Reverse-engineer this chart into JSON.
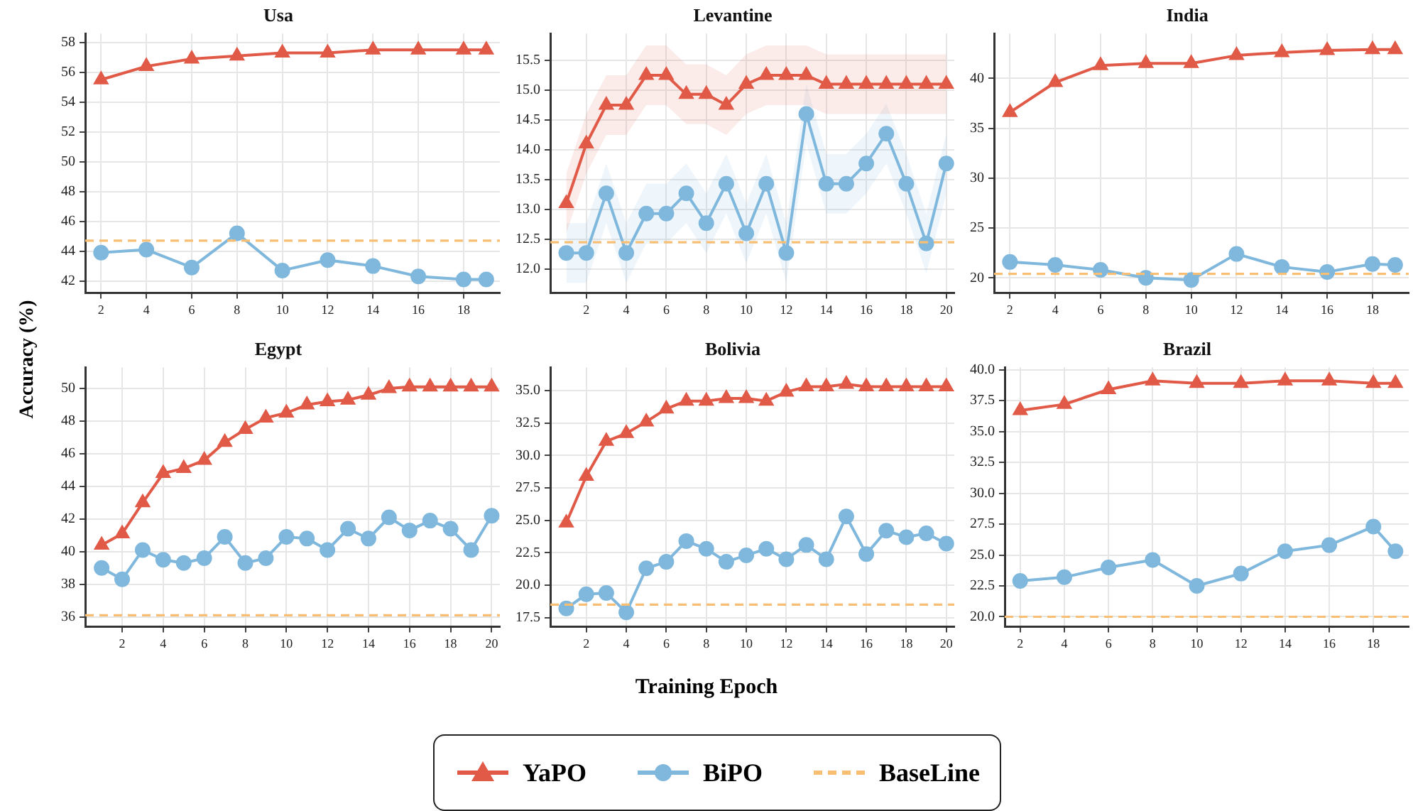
{
  "chart_data": [
    {
      "type": "line",
      "title": "Usa",
      "ylabel": "Accuracy (%)",
      "legend": "bottom",
      "grid": true,
      "x": [
        2,
        4,
        6,
        8,
        10,
        12,
        14,
        16,
        18,
        19
      ],
      "xlim": [
        1.3,
        19.6
      ],
      "xticks": [
        2,
        4,
        6,
        8,
        10,
        12,
        14,
        16,
        18
      ],
      "ylim": [
        41.2,
        58.6
      ],
      "yticks": [
        42,
        44,
        46,
        48,
        50,
        52,
        54,
        56,
        58
      ],
      "series": [
        {
          "name": "YaPO",
          "color": "#e05a47",
          "marker": "triangle",
          "values": [
            55.5,
            56.4,
            56.9,
            57.1,
            57.3,
            57.3,
            57.5,
            57.5,
            57.5,
            57.5
          ]
        },
        {
          "name": "BiPO",
          "color": "#7fb8dc",
          "marker": "circle",
          "values": [
            43.9,
            44.1,
            42.9,
            45.2,
            42.7,
            43.4,
            43.0,
            42.3,
            42.1,
            42.1
          ]
        }
      ],
      "ref_lines": [
        {
          "axis": "y",
          "value": 44.7,
          "label": "BaseLine",
          "color": "#f8bf74",
          "line_style": "dashed"
        }
      ]
    },
    {
      "type": "line",
      "title": "Levantine",
      "grid": true,
      "x": [
        1,
        2,
        3,
        4,
        5,
        6,
        7,
        8,
        9,
        10,
        11,
        12,
        13,
        14,
        15,
        16,
        17,
        18,
        19,
        20
      ],
      "xlim": [
        0.2,
        20.4
      ],
      "xticks": [
        2,
        4,
        6,
        8,
        10,
        12,
        14,
        16,
        18,
        20
      ],
      "ylim": [
        11.6,
        15.95
      ],
      "yticks": [
        {
          "value": 12,
          "label": "12.0"
        },
        12.5,
        {
          "value": 13,
          "label": "13.0"
        },
        13.5,
        {
          "value": 14,
          "label": "14.0"
        },
        14.5,
        {
          "value": 15,
          "label": "15.0"
        },
        15.5
      ],
      "series": [
        {
          "name": "YaPO",
          "color": "#e05a47",
          "marker": "triangle",
          "values": [
            13.1,
            14.1,
            14.75,
            14.75,
            15.25,
            15.25,
            14.93,
            14.93,
            14.75,
            15.1,
            15.25,
            15.25,
            15.25,
            15.1,
            15.1,
            15.1,
            15.1,
            15.1,
            15.1,
            15.1
          ],
          "lower": [
            12.6,
            13.6,
            14.25,
            14.25,
            14.75,
            14.75,
            14.43,
            14.43,
            14.25,
            14.6,
            14.75,
            14.75,
            14.75,
            14.6,
            14.6,
            14.6,
            14.6,
            14.6,
            14.6,
            14.6
          ],
          "upper": [
            13.6,
            14.6,
            15.25,
            15.25,
            15.75,
            15.75,
            15.43,
            15.43,
            15.25,
            15.6,
            15.75,
            15.75,
            15.75,
            15.6,
            15.6,
            15.6,
            15.6,
            15.6,
            15.6,
            15.6
          ]
        },
        {
          "name": "BiPO",
          "color": "#7fb8dc",
          "marker": "circle",
          "values": [
            12.27,
            12.27,
            13.27,
            12.27,
            12.93,
            12.93,
            13.27,
            12.77,
            13.43,
            12.6,
            13.43,
            12.27,
            14.6,
            13.43,
            13.43,
            13.77,
            14.27,
            13.43,
            12.43,
            13.77
          ],
          "lower": [
            11.77,
            11.77,
            12.77,
            11.77,
            12.43,
            12.43,
            12.77,
            12.27,
            12.93,
            12.1,
            12.93,
            11.77,
            14.1,
            12.93,
            12.93,
            13.27,
            13.77,
            12.93,
            11.93,
            13.27
          ],
          "upper": [
            12.77,
            12.77,
            13.77,
            12.77,
            13.43,
            13.43,
            13.77,
            13.27,
            13.93,
            13.1,
            13.93,
            12.77,
            15.1,
            13.93,
            13.93,
            14.27,
            14.77,
            13.93,
            12.93,
            14.27
          ]
        }
      ],
      "ref_lines": [
        {
          "axis": "y",
          "value": 12.45,
          "color": "#f8bf74",
          "line_style": "dashed"
        }
      ]
    },
    {
      "type": "line",
      "title": "India",
      "grid": true,
      "x": [
        2,
        4,
        6,
        8,
        10,
        12,
        14,
        16,
        18,
        19
      ],
      "xlim": [
        1.3,
        19.6
      ],
      "xticks": [
        2,
        4,
        6,
        8,
        10,
        12,
        14,
        16,
        18
      ],
      "ylim": [
        18.5,
        44.5
      ],
      "yticks": [
        20,
        25,
        30,
        35,
        40
      ],
      "series": [
        {
          "name": "YaPO",
          "color": "#e05a47",
          "marker": "triangle",
          "values": [
            36.6,
            39.6,
            41.3,
            41.5,
            41.5,
            42.3,
            42.6,
            42.8,
            42.9,
            42.9
          ]
        },
        {
          "name": "BiPO",
          "color": "#7fb8dc",
          "marker": "circle",
          "values": [
            21.6,
            21.3,
            20.8,
            20.0,
            19.8,
            22.4,
            21.1,
            20.6,
            21.4,
            21.3
          ]
        }
      ],
      "ref_lines": [
        {
          "axis": "y",
          "value": 20.4,
          "color": "#f8bf74",
          "line_style": "dashed"
        }
      ]
    },
    {
      "type": "line",
      "title": "Egypt",
      "grid": true,
      "x": [
        1,
        2,
        3,
        4,
        5,
        6,
        7,
        8,
        9,
        10,
        11,
        12,
        13,
        14,
        15,
        16,
        17,
        18,
        19,
        20
      ],
      "xlim": [
        0.2,
        20.4
      ],
      "xticks": [
        2,
        4,
        6,
        8,
        10,
        12,
        14,
        16,
        18,
        20
      ],
      "ylim": [
        35.4,
        51.3
      ],
      "yticks": [
        36,
        38,
        40,
        42,
        44,
        46,
        48,
        50
      ],
      "series": [
        {
          "name": "YaPO",
          "color": "#e05a47",
          "marker": "triangle",
          "values": [
            40.4,
            41.1,
            43.0,
            44.8,
            45.1,
            45.6,
            46.7,
            47.5,
            48.2,
            48.5,
            49.0,
            49.2,
            49.3,
            49.6,
            50.0,
            50.1,
            50.1,
            50.1,
            50.1,
            50.1
          ]
        },
        {
          "name": "BiPO",
          "color": "#7fb8dc",
          "marker": "circle",
          "values": [
            39.0,
            38.3,
            40.1,
            39.5,
            39.3,
            39.6,
            40.9,
            39.3,
            39.6,
            40.9,
            40.8,
            40.1,
            41.4,
            40.8,
            42.1,
            41.3,
            41.9,
            41.4,
            40.1,
            42.2
          ]
        }
      ],
      "ref_lines": [
        {
          "axis": "y",
          "value": 36.1,
          "color": "#f8bf74",
          "line_style": "dashed"
        }
      ]
    },
    {
      "type": "line",
      "title": "Bolivia",
      "xlabel": "Training Epoch",
      "grid": true,
      "x": [
        1,
        2,
        3,
        4,
        5,
        6,
        7,
        8,
        9,
        10,
        11,
        12,
        13,
        14,
        15,
        16,
        17,
        18,
        19,
        20
      ],
      "xlim": [
        0.2,
        20.4
      ],
      "xticks": [
        2,
        4,
        6,
        8,
        10,
        12,
        14,
        16,
        18,
        20
      ],
      "ylim": [
        16.8,
        36.8
      ],
      "yticks": [
        17.5,
        {
          "value": 20,
          "label": "20.0"
        },
        22.5,
        {
          "value": 25,
          "label": "25.0"
        },
        27.5,
        {
          "value": 30,
          "label": "30.0"
        },
        32.5,
        {
          "value": 35,
          "label": "35.0"
        }
      ],
      "series": [
        {
          "name": "YaPO",
          "color": "#e05a47",
          "marker": "triangle",
          "values": [
            24.8,
            28.4,
            31.1,
            31.7,
            32.6,
            33.6,
            34.2,
            34.2,
            34.4,
            34.4,
            34.2,
            34.9,
            35.3,
            35.3,
            35.5,
            35.3,
            35.3,
            35.3,
            35.3,
            35.3
          ]
        },
        {
          "name": "BiPO",
          "color": "#7fb8dc",
          "marker": "circle",
          "values": [
            18.2,
            19.3,
            19.4,
            17.9,
            21.3,
            21.8,
            23.4,
            22.8,
            21.8,
            22.3,
            22.8,
            22.0,
            23.1,
            22.0,
            25.3,
            22.4,
            24.2,
            23.7,
            24.0,
            23.2
          ]
        }
      ],
      "ref_lines": [
        {
          "axis": "y",
          "value": 18.5,
          "color": "#f8bf74",
          "line_style": "dashed"
        }
      ]
    },
    {
      "type": "line",
      "title": "Brazil",
      "grid": true,
      "x": [
        2,
        4,
        6,
        8,
        10,
        12,
        14,
        16,
        18,
        19
      ],
      "xlim": [
        1.3,
        19.6
      ],
      "xticks": [
        2,
        4,
        6,
        8,
        10,
        12,
        14,
        16,
        18
      ],
      "ylim": [
        19.2,
        40.2
      ],
      "yticks": [
        {
          "value": 20,
          "label": "20.0"
        },
        22.5,
        {
          "value": 25,
          "label": "25.0"
        },
        27.5,
        {
          "value": 30,
          "label": "30.0"
        },
        32.5,
        {
          "value": 35,
          "label": "35.0"
        },
        37.5,
        {
          "value": 40,
          "label": "40.0"
        }
      ],
      "series": [
        {
          "name": "YaPO",
          "color": "#e05a47",
          "marker": "triangle",
          "values": [
            36.7,
            37.2,
            38.4,
            39.1,
            38.9,
            38.9,
            39.1,
            39.1,
            38.9,
            38.9
          ]
        },
        {
          "name": "BiPO",
          "color": "#7fb8dc",
          "marker": "circle",
          "values": [
            22.9,
            23.2,
            24.0,
            24.6,
            22.5,
            23.5,
            25.3,
            25.8,
            27.3,
            25.3
          ]
        }
      ],
      "ref_lines": [
        {
          "axis": "y",
          "value": 20.0,
          "color": "#f8bf74",
          "line_style": "dashed"
        }
      ]
    }
  ]
}
